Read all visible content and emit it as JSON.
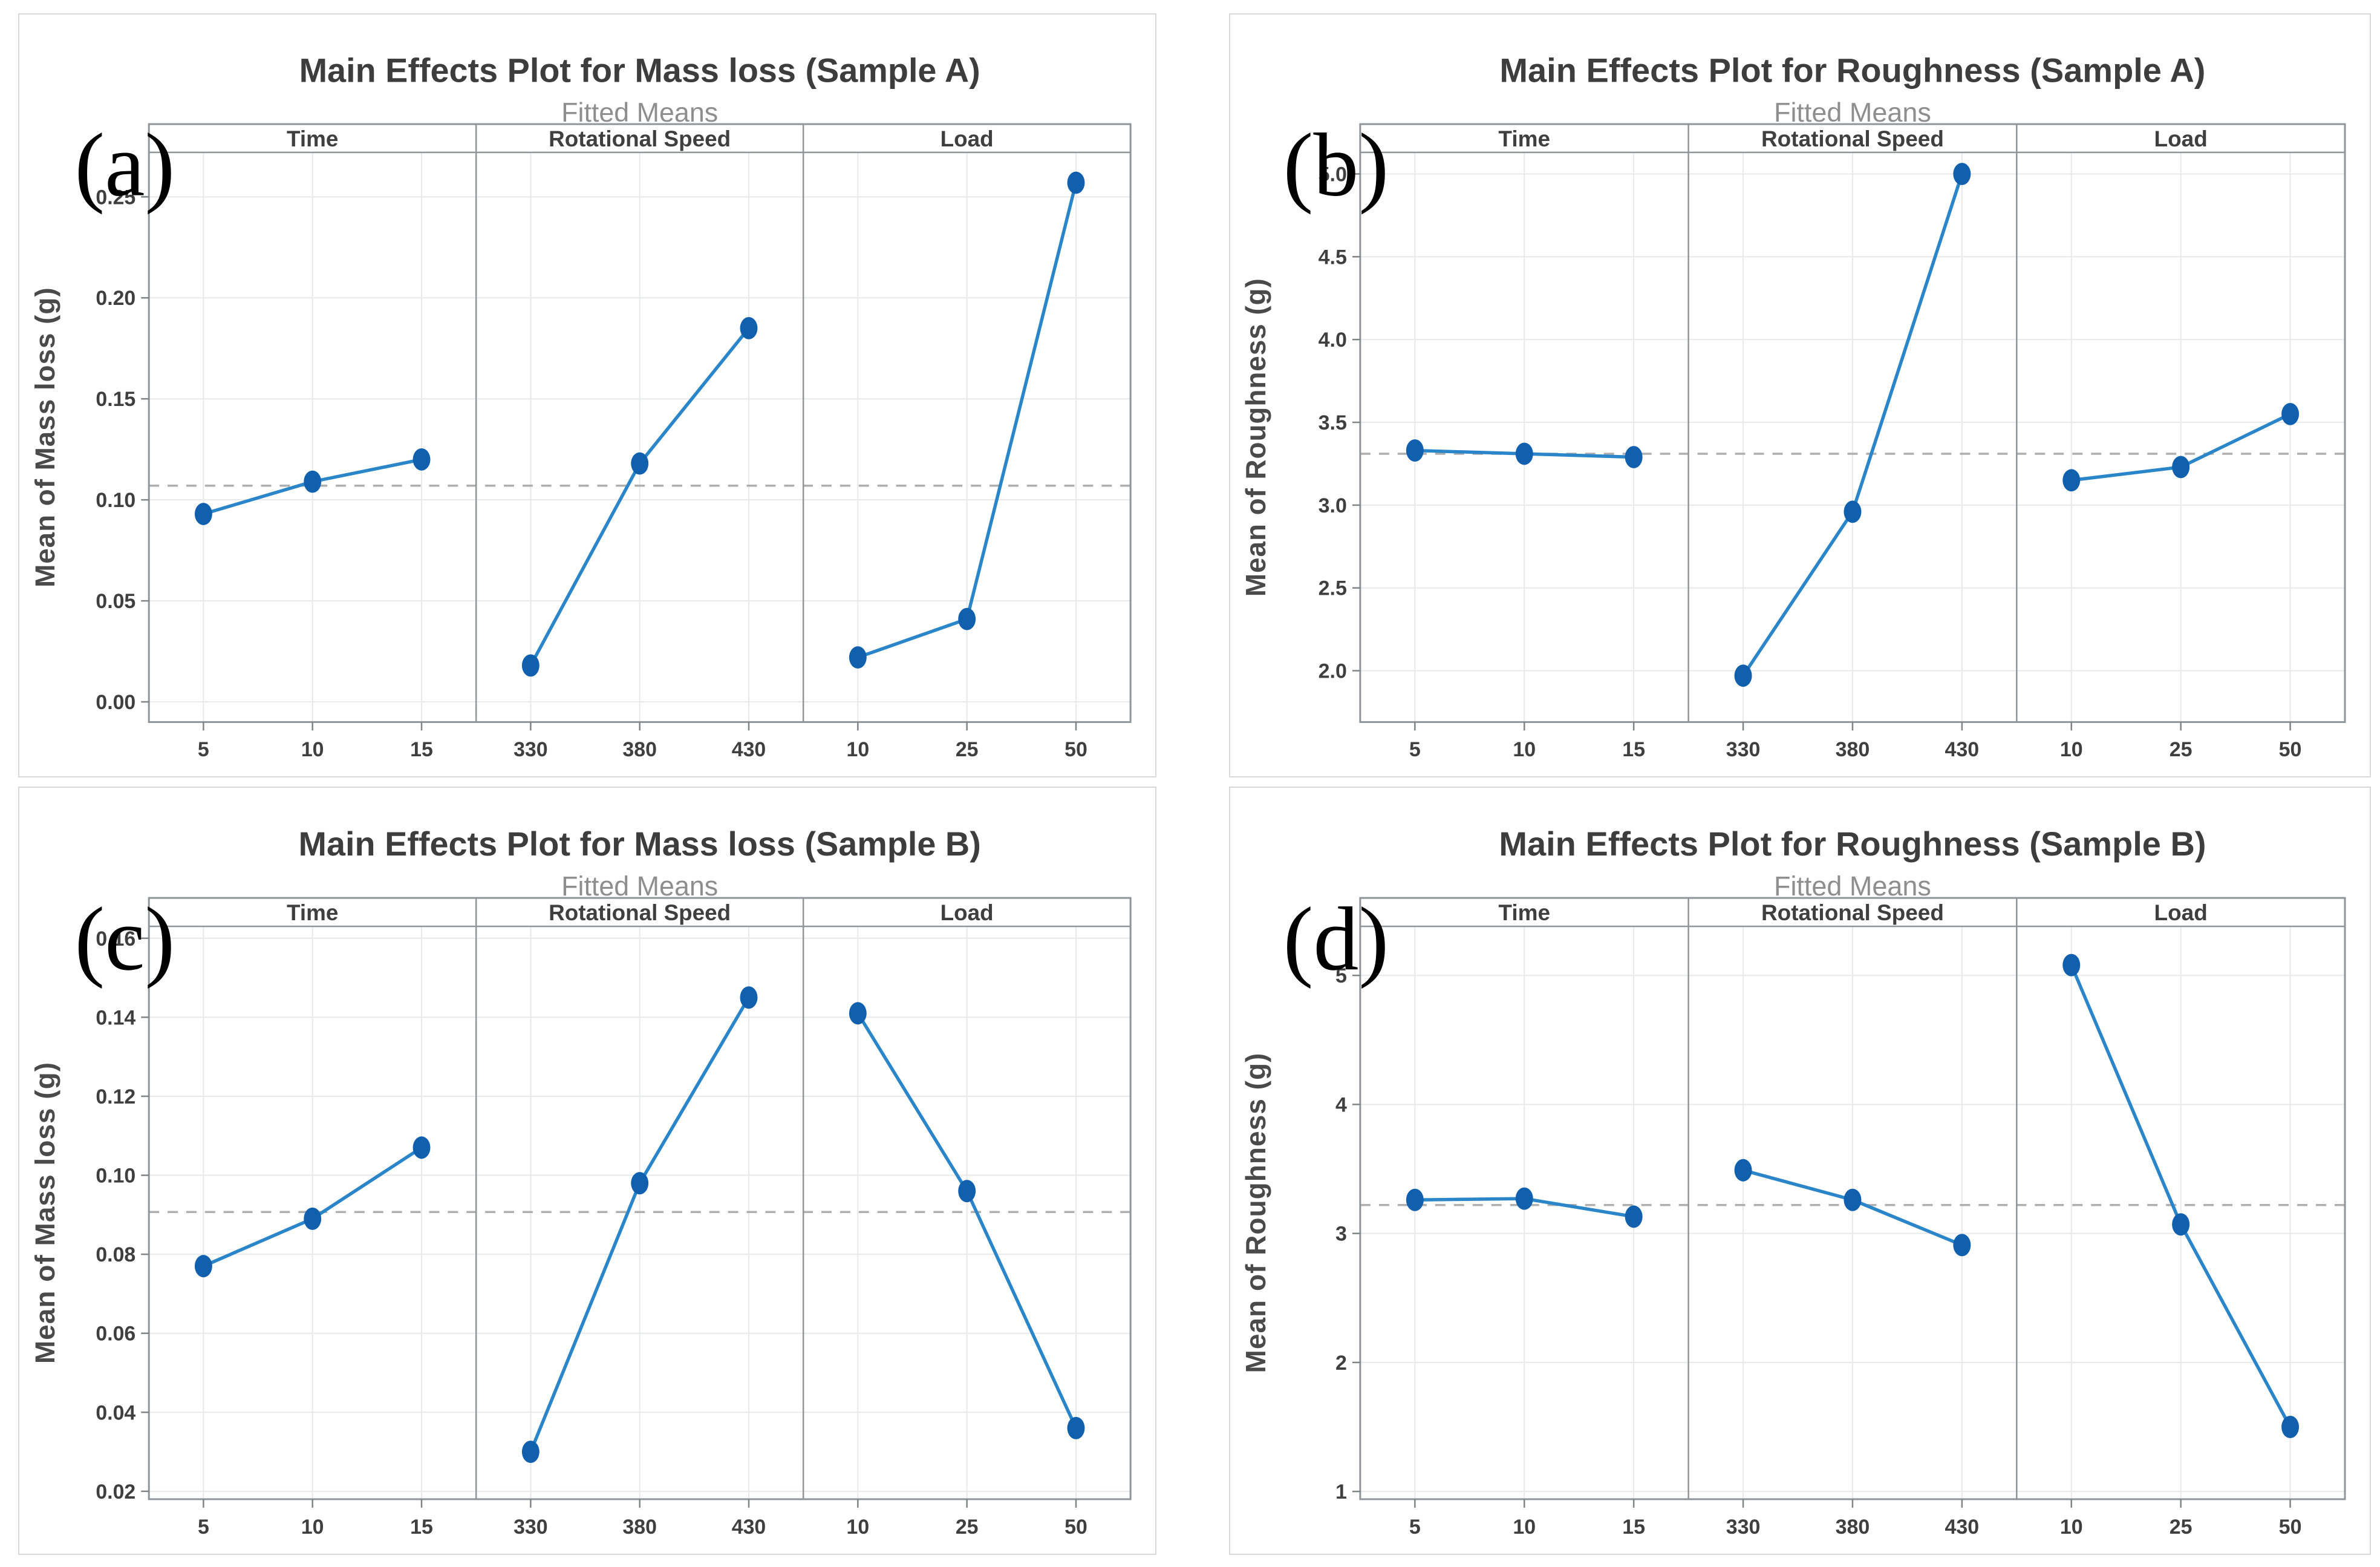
{
  "style": {
    "line_color": "#2B85C9",
    "marker_color": "#1160AE",
    "grid_color": "#E7E9EA",
    "frame_color": "#8F9598",
    "tick_mark_color": "#7F8487",
    "mean_line_color": "#AFAFAF",
    "title_color": "#3D3D3D",
    "subtitle_color": "#8E8E8E",
    "tick_label_color": "#3F3F3F",
    "axis_label_color": "#4A4A4A",
    "corner_label_color": "#000000",
    "card_border_color": "#D9D9D9",
    "background": "#FFFFFF"
  },
  "chart_data": [
    {
      "type": "line",
      "corner_label": "(a)",
      "title": "Main Effects Plot for Mass loss (Sample A)",
      "subtitle": "Fitted Means",
      "ylabel": "Mean of Mass loss (g)",
      "panel_labels": [
        "Time",
        "Rotational Speed",
        "Load"
      ],
      "panels": [
        {
          "factor": "Time",
          "categories": [
            "5",
            "10",
            "15"
          ],
          "values": [
            0.093,
            0.109,
            0.12
          ]
        },
        {
          "factor": "Rotational Speed",
          "categories": [
            "330",
            "380",
            "430"
          ],
          "values": [
            0.018,
            0.118,
            0.185
          ]
        },
        {
          "factor": "Load",
          "categories": [
            "10",
            "25",
            "50"
          ],
          "values": [
            0.022,
            0.041,
            0.257
          ]
        }
      ],
      "yticks": [
        0.0,
        0.05,
        0.1,
        0.15,
        0.2,
        0.25
      ],
      "ytick_decimals": 2,
      "ylim": [
        -0.01,
        0.272
      ],
      "mean_line": 0.107,
      "grid": true,
      "legend": "none"
    },
    {
      "type": "line",
      "corner_label": "(b)",
      "title": "Main Effects Plot for Roughness (Sample A)",
      "subtitle": "Fitted Means",
      "ylabel": "Mean of Roughness (g)",
      "panel_labels": [
        "Time",
        "Rotational Speed",
        "Load"
      ],
      "panels": [
        {
          "factor": "Time",
          "categories": [
            "5",
            "10",
            "15"
          ],
          "values": [
            3.33,
            3.31,
            3.29
          ]
        },
        {
          "factor": "Rotational Speed",
          "categories": [
            "330",
            "380",
            "430"
          ],
          "values": [
            1.97,
            2.96,
            5.0
          ]
        },
        {
          "factor": "Load",
          "categories": [
            "10",
            "25",
            "50"
          ],
          "values": [
            3.15,
            3.23,
            3.55
          ]
        }
      ],
      "yticks": [
        2.0,
        2.5,
        3.0,
        3.5,
        4.0,
        4.5,
        5.0
      ],
      "ytick_decimals": 1,
      "ylim": [
        1.69,
        5.13
      ],
      "mean_line": 3.31,
      "grid": true,
      "legend": "none"
    },
    {
      "type": "line",
      "corner_label": "(c)",
      "title": "Main Effects Plot for Mass loss (Sample B)",
      "subtitle": "Fitted Means",
      "ylabel": "Mean of Mass loss (g)",
      "panel_labels": [
        "Time",
        "Rotational Speed",
        "Load"
      ],
      "panels": [
        {
          "factor": "Time",
          "categories": [
            "5",
            "10",
            "15"
          ],
          "values": [
            0.077,
            0.089,
            0.107
          ]
        },
        {
          "factor": "Rotational Speed",
          "categories": [
            "330",
            "380",
            "430"
          ],
          "values": [
            0.03,
            0.098,
            0.145
          ]
        },
        {
          "factor": "Load",
          "categories": [
            "10",
            "25",
            "50"
          ],
          "values": [
            0.141,
            0.096,
            0.036
          ]
        }
      ],
      "yticks": [
        0.02,
        0.04,
        0.06,
        0.08,
        0.1,
        0.12,
        0.14,
        0.16
      ],
      "ytick_decimals": 2,
      "ylim": [
        0.018,
        0.163
      ],
      "mean_line": 0.0907,
      "grid": true,
      "legend": "none"
    },
    {
      "type": "line",
      "corner_label": "(d)",
      "title": "Main Effects Plot for Roughness (Sample B)",
      "subtitle": "Fitted Means",
      "ylabel": "Mean of Roughness (g)",
      "panel_labels": [
        "Time",
        "Rotational Speed",
        "Load"
      ],
      "panels": [
        {
          "factor": "Time",
          "categories": [
            "5",
            "10",
            "15"
          ],
          "values": [
            3.26,
            3.27,
            3.13
          ]
        },
        {
          "factor": "Rotational Speed",
          "categories": [
            "330",
            "380",
            "430"
          ],
          "values": [
            3.49,
            3.26,
            2.91
          ]
        },
        {
          "factor": "Load",
          "categories": [
            "10",
            "25",
            "50"
          ],
          "values": [
            5.08,
            3.07,
            1.5
          ]
        }
      ],
      "yticks": [
        1,
        2,
        3,
        4,
        5
      ],
      "ytick_decimals": 0,
      "ylim": [
        0.94,
        5.38
      ],
      "mean_line": 3.22,
      "grid": true,
      "legend": "none"
    }
  ]
}
